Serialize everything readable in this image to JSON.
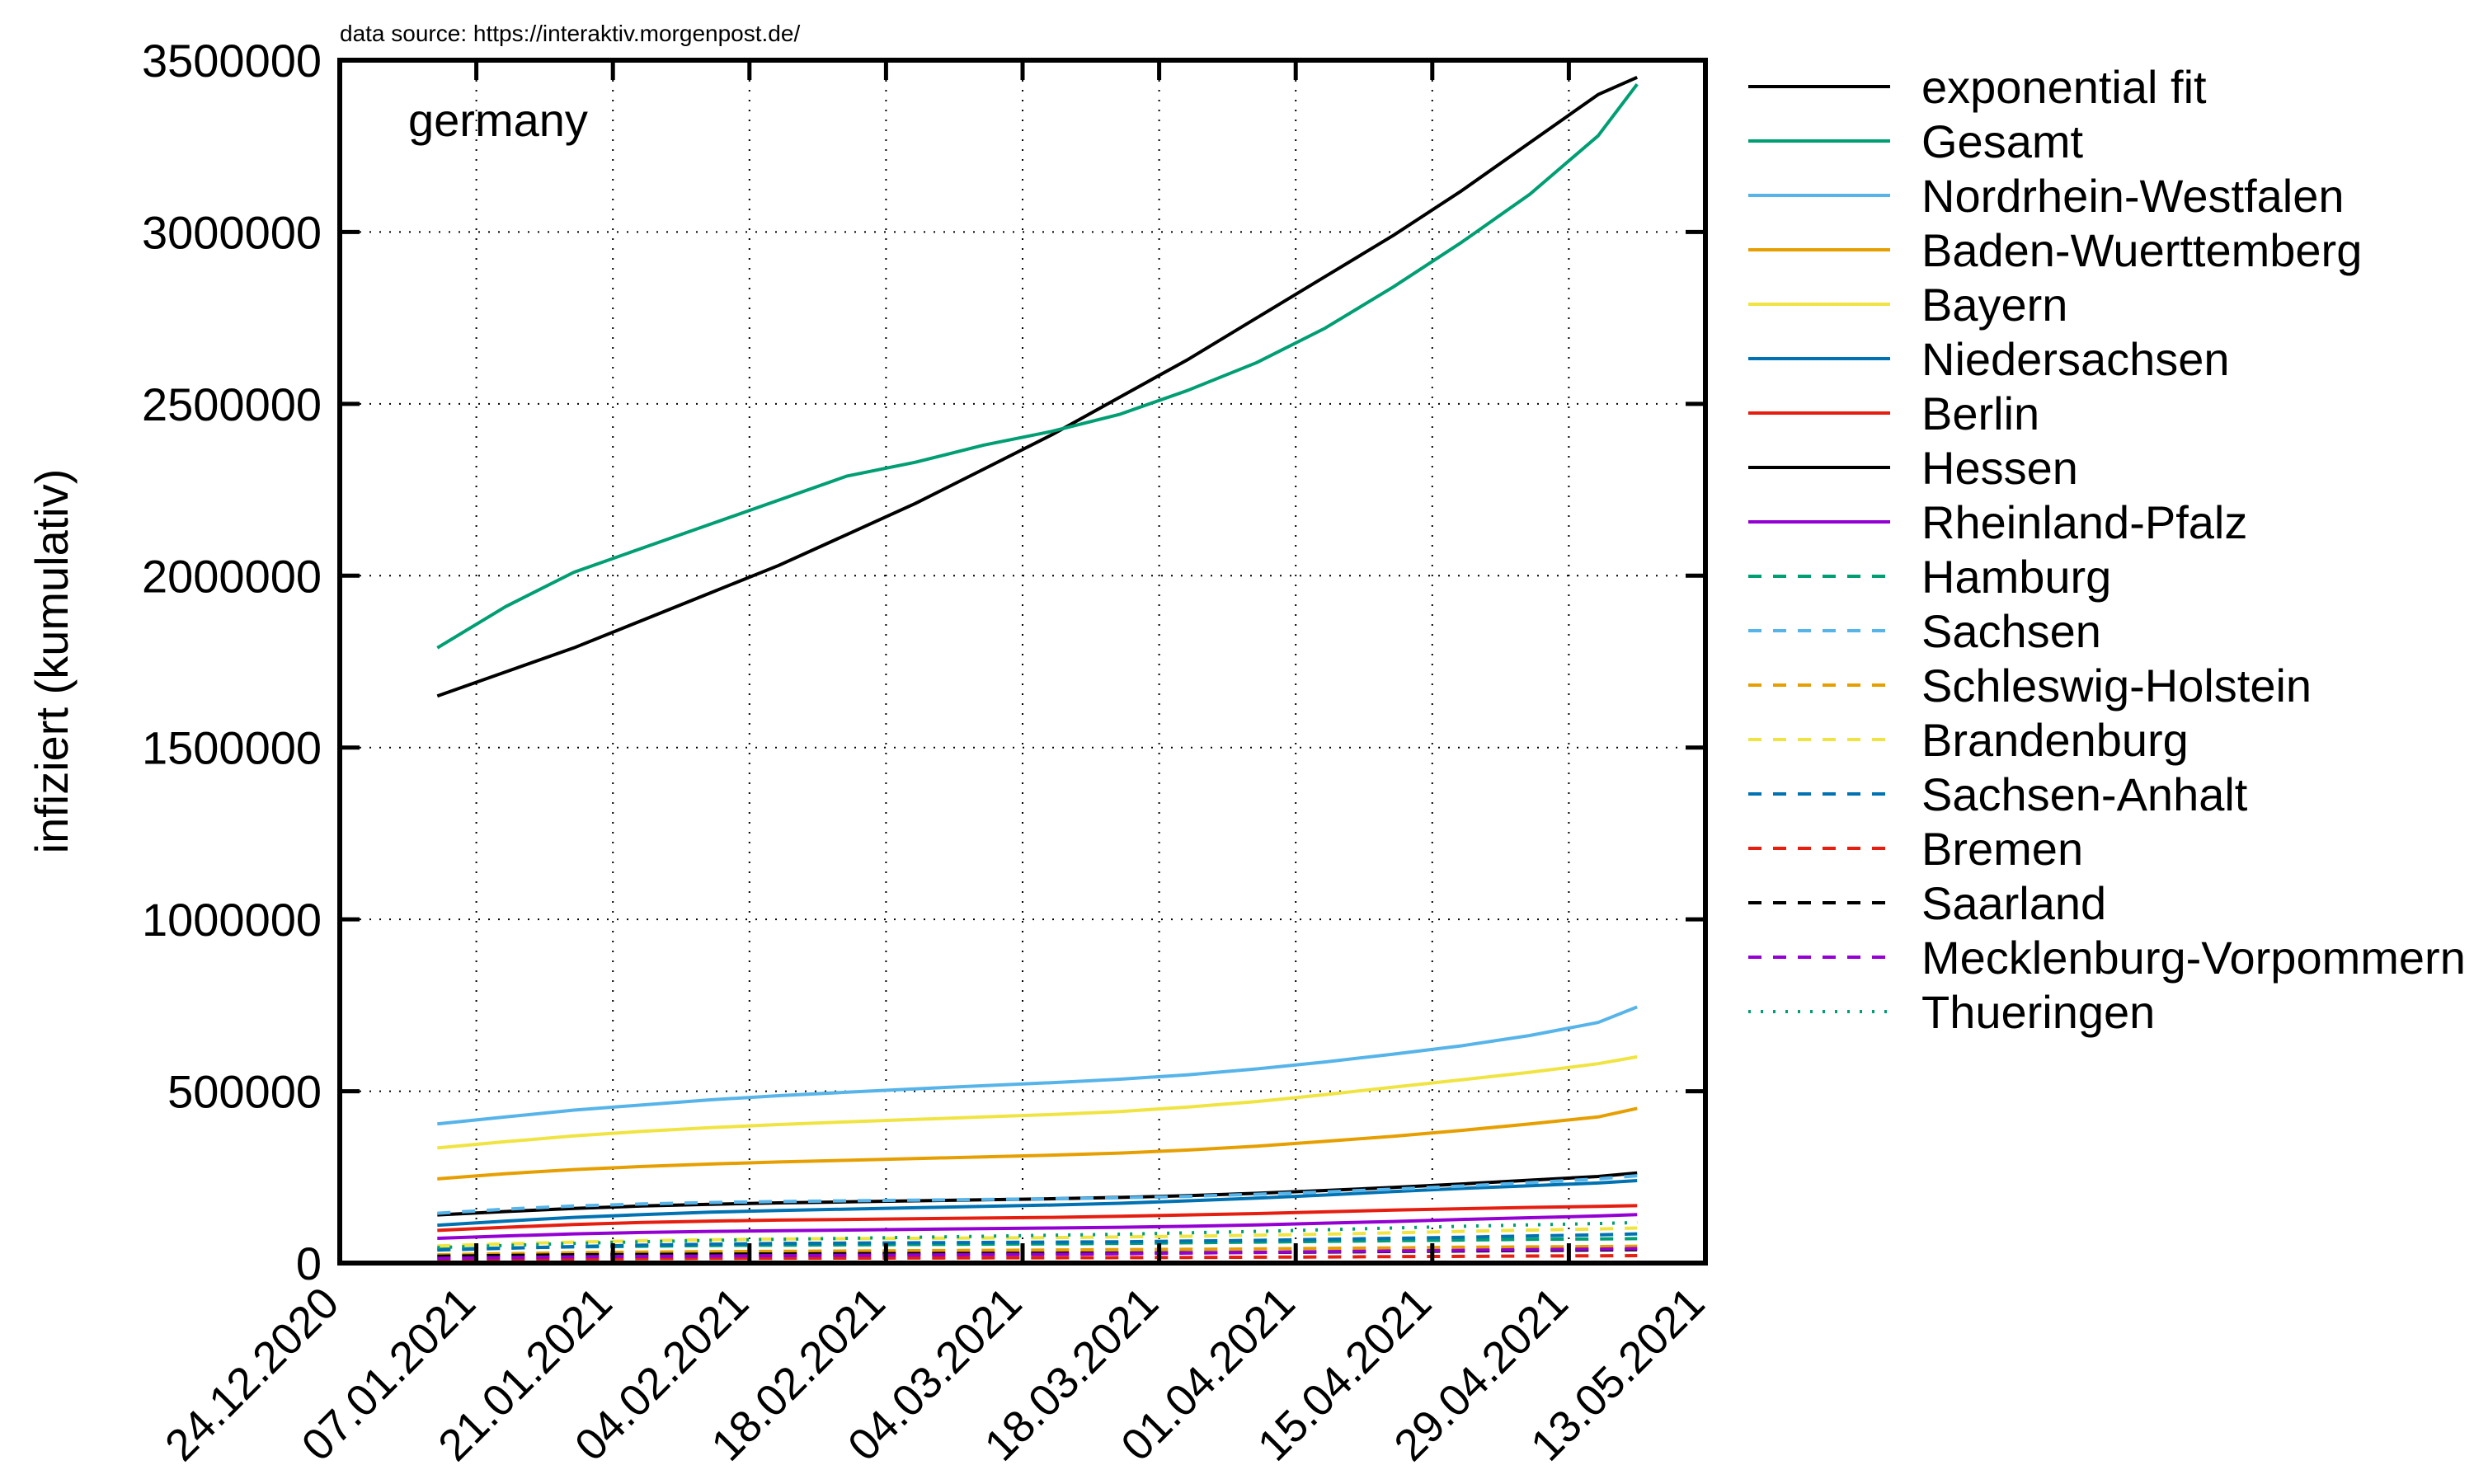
{
  "source_note": "data source: https://interaktiv.morgenpost.de/",
  "chart_data": {
    "type": "line",
    "title": "germany",
    "xlabel": "",
    "ylabel": "infiziert (kumulativ)",
    "ylim": [
      0,
      3500000
    ],
    "yticks": [
      "0",
      "500000",
      "1000000",
      "1500000",
      "2000000",
      "2500000",
      "3000000",
      "3500000"
    ],
    "xlim": [
      "2020-12-24",
      "2021-05-13"
    ],
    "xticks": [
      "24.12.2020",
      "07.01.2021",
      "21.01.2021",
      "04.02.2021",
      "18.02.2021",
      "04.03.2021",
      "18.03.2021",
      "01.04.2021",
      "15.04.2021",
      "29.04.2021",
      "13.05.2021"
    ],
    "grid": true,
    "legend_position": "outside-right",
    "x": [
      "2021-01-03",
      "2021-01-10",
      "2021-01-17",
      "2021-01-24",
      "2021-01-31",
      "2021-02-07",
      "2021-02-14",
      "2021-02-21",
      "2021-02-28",
      "2021-03-07",
      "2021-03-14",
      "2021-03-21",
      "2021-03-28",
      "2021-04-04",
      "2021-04-11",
      "2021-04-18",
      "2021-04-25",
      "2021-05-02",
      "2021-05-06"
    ],
    "series": [
      {
        "name": "exponential fit",
        "color": "#000000",
        "dash": "solid",
        "values": [
          1650000,
          1720000,
          1790000,
          1870000,
          1950000,
          2030000,
          2120000,
          2210000,
          2310000,
          2410000,
          2520000,
          2630000,
          2750000,
          2870000,
          2990000,
          3120000,
          3260000,
          3400000,
          3450000
        ]
      },
      {
        "name": "Gesamt",
        "color": "#009e73",
        "dash": "solid",
        "values": [
          1790000,
          1910000,
          2010000,
          2080000,
          2150000,
          2220000,
          2290000,
          2330000,
          2380000,
          2420000,
          2470000,
          2540000,
          2620000,
          2720000,
          2840000,
          2970000,
          3110000,
          3280000,
          3430000
        ]
      },
      {
        "name": "Nordrhein-Westfalen",
        "color": "#56b4e9",
        "dash": "solid",
        "values": [
          405000,
          425000,
          445000,
          460000,
          475000,
          487000,
          497000,
          507000,
          516000,
          525000,
          535000,
          548000,
          565000,
          585000,
          608000,
          632000,
          662000,
          700000,
          745000
        ]
      },
      {
        "name": "Baden-Wuerttemberg",
        "color": "#e69f00",
        "dash": "solid",
        "values": [
          245000,
          260000,
          272000,
          281000,
          288000,
          294000,
          299000,
          304000,
          309000,
          314000,
          320000,
          329000,
          340000,
          354000,
          369000,
          386000,
          405000,
          425000,
          450000
        ]
      },
      {
        "name": "Bayern",
        "color": "#f0e442",
        "dash": "solid",
        "values": [
          335000,
          353000,
          370000,
          383000,
          394000,
          403000,
          411000,
          418000,
          425000,
          432000,
          441000,
          454000,
          470000,
          490000,
          512000,
          533000,
          555000,
          580000,
          600000
        ]
      },
      {
        "name": "Niedersachsen",
        "color": "#0072b2",
        "dash": "solid",
        "values": [
          110000,
          122000,
          133000,
          141000,
          148000,
          153000,
          157000,
          161000,
          165000,
          169000,
          174000,
          181000,
          189000,
          198000,
          208000,
          217000,
          225000,
          233000,
          240000
        ]
      },
      {
        "name": "Berlin",
        "color": "#e51e10",
        "dash": "solid",
        "values": [
          95000,
          104000,
          112000,
          118000,
          122000,
          125000,
          127000,
          129000,
          131000,
          133000,
          136000,
          140000,
          144000,
          149000,
          154000,
          158000,
          162000,
          165000,
          167000
        ]
      },
      {
        "name": "Hessen",
        "color": "#000000",
        "dash": "solid",
        "values": [
          140000,
          150000,
          159000,
          166000,
          171000,
          175000,
          178000,
          181000,
          184000,
          187000,
          191000,
          196000,
          203000,
          211000,
          220000,
          230000,
          241000,
          252000,
          262000
        ]
      },
      {
        "name": "Rheinland-Pfalz",
        "color": "#9400d3",
        "dash": "solid",
        "values": [
          72000,
          79000,
          85000,
          89000,
          92000,
          94000,
          96000,
          98000,
          100000,
          102000,
          104000,
          107000,
          111000,
          116000,
          121000,
          127000,
          132000,
          137000,
          141000
        ]
      },
      {
        "name": "Hamburg",
        "color": "#009e73",
        "dash": "dashed",
        "values": [
          40000,
          44000,
          47000,
          49000,
          51000,
          52000,
          53000,
          54000,
          55000,
          56000,
          57000,
          59000,
          61000,
          63000,
          65000,
          67000,
          69000,
          70000,
          71000
        ]
      },
      {
        "name": "Sachsen",
        "color": "#56b4e9",
        "dash": "dashed",
        "values": [
          145000,
          157000,
          166000,
          172000,
          176000,
          179000,
          181000,
          183000,
          185000,
          187000,
          190000,
          194000,
          200000,
          207000,
          215000,
          224000,
          234000,
          245000,
          254000
        ]
      },
      {
        "name": "Schleswig-Holstein",
        "color": "#e69f00",
        "dash": "dashed",
        "values": [
          24000,
          27000,
          30000,
          32000,
          33000,
          34000,
          35000,
          36000,
          37000,
          38000,
          39000,
          40000,
          41000,
          43000,
          44000,
          46000,
          47000,
          48000,
          49000
        ]
      },
      {
        "name": "Brandenburg",
        "color": "#f0e442",
        "dash": "dashed",
        "values": [
          50000,
          56000,
          61000,
          65000,
          68000,
          70000,
          71000,
          72000,
          73000,
          74000,
          76000,
          78000,
          81000,
          84000,
          88000,
          92000,
          96000,
          99000,
          102000
        ]
      },
      {
        "name": "Sachsen-Anhalt",
        "color": "#0072b2",
        "dash": "dashed",
        "values": [
          38000,
          43000,
          48000,
          52000,
          55000,
          57000,
          58000,
          59000,
          60000,
          61000,
          62000,
          64000,
          66000,
          69000,
          72000,
          75000,
          79000,
          82000,
          85000
        ]
      },
      {
        "name": "Bremen",
        "color": "#e51e10",
        "dash": "dashed",
        "values": [
          10000,
          11000,
          12000,
          13000,
          13500,
          14000,
          14300,
          14600,
          15000,
          15400,
          15800,
          16300,
          17000,
          17800,
          18600,
          19500,
          20300,
          21000,
          21500
        ]
      },
      {
        "name": "Saarland",
        "color": "#000000",
        "dash": "dashed",
        "values": [
          20000,
          22000,
          24000,
          25000,
          26000,
          26500,
          27000,
          27500,
          28000,
          28500,
          29000,
          30000,
          31000,
          32000,
          33500,
          35000,
          36500,
          38000,
          39000
        ]
      },
      {
        "name": "Mecklenburg-Vorpommern",
        "color": "#9400d3",
        "dash": "dashed",
        "values": [
          14000,
          16000,
          18000,
          19500,
          20500,
          21500,
          22500,
          23500,
          24500,
          25500,
          27000,
          29000,
          31000,
          33000,
          35000,
          37000,
          39000,
          40500,
          42000
        ]
      },
      {
        "name": "Thueringen",
        "color": "#009e73",
        "dash": "dotted",
        "values": [
          45000,
          51000,
          57000,
          62000,
          66000,
          69000,
          72000,
          75000,
          78000,
          81000,
          84000,
          88000,
          92000,
          97000,
          102000,
          107000,
          111000,
          115000,
          118000
        ]
      }
    ]
  }
}
